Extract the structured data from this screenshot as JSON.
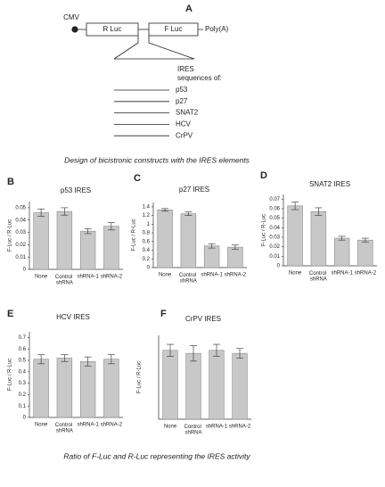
{
  "diagram": {
    "label": "A",
    "cmv": "CMV",
    "r_luc": "R Luc",
    "f_luc": "F Luc",
    "poly_a": "Poly(A)",
    "ires_heading": [
      "IRES",
      "sequences of:"
    ],
    "ires": [
      "p53",
      "p27",
      "SNAT2",
      "HCV",
      "CrPV"
    ]
  },
  "caption_top": "Design of bicistronic constructs with the IRES elements",
  "caption_bottom": "Ratio of F-Luc and R-Luc representing the IRES activity",
  "chart_data": [
    {
      "type": "bar",
      "label": "B",
      "title": "p53 IRES",
      "ylabel": "F-Luc / R-Luc",
      "categories": [
        "None",
        "Control shRNA",
        "shRNA-1",
        "shRNA-2"
      ],
      "values": [
        0.046,
        0.047,
        0.031,
        0.035
      ],
      "errors": [
        0.003,
        0.003,
        0.002,
        0.003
      ],
      "color": "#c8c8c8",
      "ylim": [
        0,
        0.055
      ],
      "yticks": [
        0,
        0.01,
        0.02,
        0.03,
        0.04,
        0.05
      ]
    },
    {
      "type": "bar",
      "label": "C",
      "title": "p27 IRES",
      "ylabel": "F-Luc / R-Luc",
      "categories": [
        "None",
        "Control shRNA",
        "shRNA-1",
        "shRNA-2"
      ],
      "values": [
        1.33,
        1.24,
        0.5,
        0.47
      ],
      "errors": [
        0.03,
        0.04,
        0.05,
        0.05
      ],
      "color": "#c8c8c8",
      "ylim": [
        0,
        1.5
      ],
      "yticks": [
        0,
        0.2,
        0.4,
        0.6,
        0.8,
        1,
        1.2,
        1.4
      ]
    },
    {
      "type": "bar",
      "label": "D",
      "title": "SNAT2 IRES",
      "ylabel": "F-Luc / R-Luc",
      "categories": [
        "None",
        "Control shRNA",
        "shRNA-1",
        "shRNA-2"
      ],
      "values": [
        0.063,
        0.057,
        0.029,
        0.027
      ],
      "errors": [
        0.004,
        0.004,
        0.002,
        0.002
      ],
      "color": "#c8c8c8",
      "ylim": [
        0,
        0.075
      ],
      "yticks": [
        0,
        0.01,
        0.02,
        0.03,
        0.04,
        0.05,
        0.06,
        0.07
      ]
    },
    {
      "type": "bar",
      "label": "E",
      "title": "HCV IRES",
      "ylabel": "F-Luc / R-Luc",
      "categories": [
        "None",
        "Control shRNA",
        "shRNA-1",
        "shRNA-2"
      ],
      "values": [
        0.51,
        0.52,
        0.49,
        0.51
      ],
      "errors": [
        0.04,
        0.03,
        0.04,
        0.04
      ],
      "color": "#c8c8c8",
      "ylim": [
        0,
        0.75
      ],
      "yticks": [
        0,
        0.1,
        0.2,
        0.3,
        0.4,
        0.5,
        0.6,
        0.7
      ]
    },
    {
      "type": "bar",
      "label": "F",
      "title": "CrPV IRES",
      "ylabel": "F-Luc / R-Luc",
      "categories": [
        "None",
        "Control shRNA",
        "shRNA-1",
        "shRNA-2"
      ],
      "values": [
        1.15,
        1.1,
        1.15,
        1.1
      ],
      "errors": [
        0.1,
        0.13,
        0.1,
        0.08
      ],
      "color": "#c8c8c8",
      "ylim": [
        0,
        1.4
      ]
    }
  ]
}
